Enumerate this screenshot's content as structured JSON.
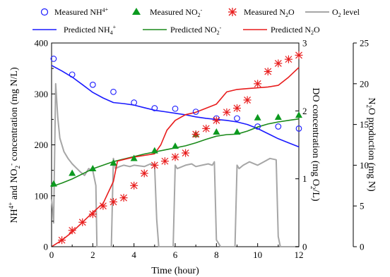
{
  "chart_data": {
    "type": "line",
    "xlabel": "Time (hour)",
    "x_ticks": [
      "0",
      "2",
      "4",
      "6",
      "8",
      "10",
      "12"
    ],
    "xlim": [
      0,
      12
    ],
    "y_left": {
      "label": "NH4+ and NO2- concentration (mg N/L)",
      "ticks": [
        "0",
        "100",
        "200",
        "300",
        "400"
      ],
      "ylim": [
        0,
        400
      ]
    },
    "y_right1": {
      "label": "DO concentration (mg O2/L)",
      "ticks": [
        "0",
        "1",
        "2",
        "3"
      ],
      "ylim": [
        0,
        3
      ]
    },
    "y_right2": {
      "label": "N2O production (mg N)",
      "ticks": [
        "0",
        "5",
        "10",
        "15",
        "20",
        "25"
      ],
      "ylim": [
        0,
        25
      ]
    },
    "legend": {
      "placement": "top",
      "items": [
        "Measured NH4+",
        "Measured NO2-",
        "Measured N2O",
        "O2 level",
        "Predicted NH4+",
        "Predicted NO2-",
        "Predicted N2O"
      ]
    },
    "series": [
      {
        "name": "Measured NH4+",
        "axis": "left",
        "kind": "marker",
        "marker": "circle",
        "color": "#1a1aff",
        "x": [
          0.1,
          1,
          2,
          3,
          4,
          5,
          6,
          7,
          8,
          9,
          10,
          11,
          12
        ],
        "y": [
          369,
          338,
          318,
          304,
          283,
          272,
          271,
          265,
          252,
          252,
          236,
          236,
          232
        ]
      },
      {
        "name": "Measured NO2-",
        "axis": "left",
        "kind": "marker",
        "marker": "triangle",
        "color": "#0c9a1f",
        "x": [
          0.1,
          1,
          2,
          3,
          4,
          5,
          6,
          7,
          8,
          9,
          10,
          11,
          12
        ],
        "y": [
          123,
          144,
          153,
          164,
          173,
          188,
          197,
          220,
          225,
          225,
          253,
          254,
          258
        ]
      },
      {
        "name": "Measured N2O",
        "axis": "right2",
        "kind": "marker",
        "marker": "asterisk",
        "color": "#e81c1c",
        "x": [
          0.5,
          1,
          1.5,
          2,
          2.5,
          3,
          3.5,
          4,
          4.5,
          5,
          5.5,
          6,
          6.5,
          7,
          7.5,
          8,
          8.5,
          9,
          9.5,
          10,
          10.5,
          11,
          11.5,
          12
        ],
        "y": [
          0.8,
          2.0,
          3.0,
          4.0,
          5.0,
          5.5,
          6.0,
          7.5,
          9.0,
          10.0,
          10.5,
          11.0,
          11.5,
          13.8,
          14.5,
          15.5,
          16.5,
          17.0,
          18.0,
          20.0,
          21.5,
          22.5,
          23.0,
          23.5
        ]
      },
      {
        "name": "O2 level",
        "axis": "right1",
        "kind": "line",
        "color": "#a6a6a6",
        "x": [
          0,
          0.05,
          0.1,
          0.2,
          0.3,
          0.4,
          0.6,
          0.8,
          1.0,
          1.2,
          1.4,
          1.6,
          1.8,
          2.0,
          2.15,
          2.2,
          2.3,
          2.9,
          3.0,
          3.1,
          3.3,
          3.5,
          3.8,
          4.0,
          4.5,
          4.8,
          5.0,
          5.1,
          5.2,
          5.9,
          6.0,
          6.1,
          6.5,
          6.8,
          7.0,
          7.3,
          7.6,
          7.8,
          7.9,
          8.0,
          8.1,
          8.2,
          8.9,
          9.0,
          9.1,
          9.3,
          9.6,
          10.0,
          10.3,
          10.6,
          10.9,
          11.0,
          11.1,
          11.2,
          12.0
        ],
        "y": [
          0.7,
          0.55,
          0.35,
          2.4,
          1.9,
          1.6,
          1.4,
          1.3,
          1.22,
          1.16,
          1.1,
          1.05,
          1.15,
          1.12,
          0.9,
          0.0,
          0.0,
          0.0,
          1.3,
          1.15,
          1.18,
          1.2,
          1.18,
          1.2,
          1.18,
          1.22,
          1.2,
          0.4,
          0.0,
          0.0,
          1.2,
          1.15,
          1.2,
          1.22,
          1.18,
          1.2,
          1.22,
          1.2,
          1.25,
          0.1,
          0.05,
          0.0,
          0.0,
          1.2,
          1.15,
          1.2,
          1.25,
          1.2,
          1.25,
          1.3,
          1.28,
          0.15,
          0.0,
          0.0,
          0.0
        ]
      },
      {
        "name": "Predicted NH4+",
        "axis": "left",
        "kind": "line",
        "color": "#1a1aff",
        "x": [
          0,
          0.5,
          1,
          1.5,
          2,
          2.5,
          3,
          3.5,
          4,
          4.5,
          5,
          5.5,
          6,
          6.5,
          7,
          7.5,
          8,
          8.5,
          9,
          9.5,
          10,
          10.5,
          11,
          11.5,
          12
        ],
        "y": [
          356,
          345,
          333,
          318,
          303,
          292,
          283,
          281,
          278,
          273,
          268,
          265,
          262,
          259,
          255,
          252,
          250,
          248,
          245,
          240,
          232,
          222,
          212,
          204,
          196
        ]
      },
      {
        "name": "Predicted NO2-",
        "axis": "left",
        "kind": "line",
        "color": "#1a8a1a",
        "x": [
          0,
          0.5,
          1,
          1.5,
          2,
          2.5,
          3,
          3.5,
          4,
          4.5,
          5,
          5.5,
          6,
          6.5,
          7,
          7.5,
          8,
          8.5,
          9,
          9.5,
          10,
          10.5,
          11,
          11.5,
          12
        ],
        "y": [
          118,
          125,
          133,
          143,
          153,
          160,
          167,
          172,
          177,
          182,
          186,
          190,
          194,
          198,
          204,
          211,
          217,
          220,
          221,
          227,
          235,
          241,
          245,
          248,
          251
        ]
      },
      {
        "name": "Predicted N2O",
        "axis": "right2",
        "kind": "line",
        "color": "#e81c1c",
        "x": [
          0,
          0.5,
          1,
          1.5,
          2,
          2.5,
          3,
          3.2,
          3.5,
          4,
          4.5,
          5,
          5.3,
          5.6,
          6,
          6.5,
          7,
          7.5,
          8,
          8.5,
          9,
          9.5,
          10,
          10.5,
          11,
          11.5,
          12
        ],
        "y": [
          0.0,
          0.8,
          1.8,
          3.0,
          4.2,
          5.3,
          8.0,
          10.5,
          10.7,
          11.0,
          11.2,
          11.4,
          12.5,
          14.3,
          15.5,
          16.2,
          16.5,
          17.0,
          17.5,
          19.0,
          19.3,
          19.4,
          19.5,
          19.6,
          19.8,
          20.8,
          22.0
        ]
      }
    ]
  }
}
